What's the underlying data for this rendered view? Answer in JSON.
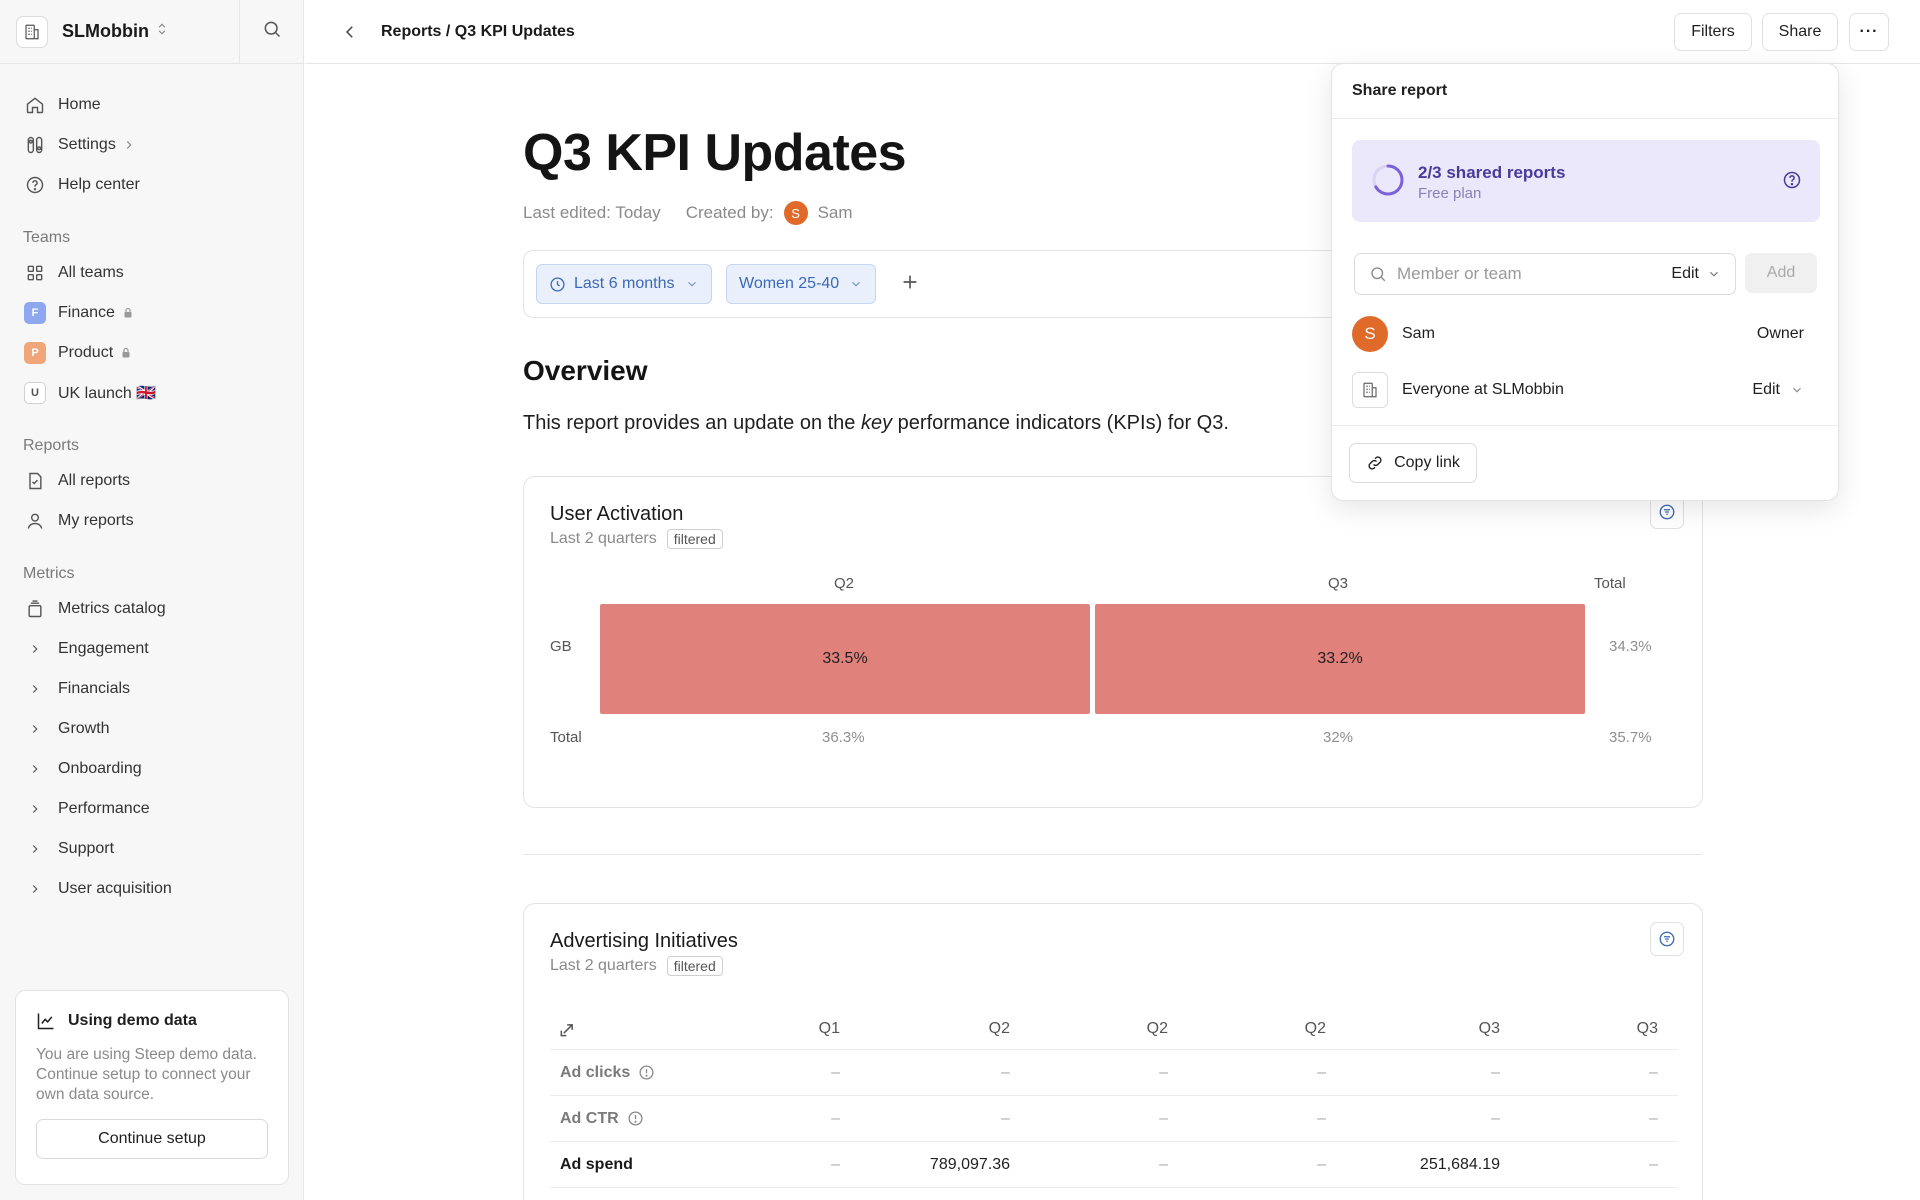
{
  "workspace": {
    "name": "SLMobbin"
  },
  "sidebar": {
    "top_items": [
      {
        "label": "Home"
      },
      {
        "label": "Settings"
      },
      {
        "label": "Help center"
      }
    ],
    "teams_label": "Teams",
    "teams": [
      {
        "label": "All teams"
      },
      {
        "label": "Finance",
        "badge": "F",
        "color": "#8fa7ee"
      },
      {
        "label": "Product",
        "badge": "P",
        "color": "#f0a679"
      },
      {
        "label": "UK launch 🇬🇧",
        "badge": "U"
      }
    ],
    "reports_label": "Reports",
    "reports": [
      {
        "label": "All reports"
      },
      {
        "label": "My reports"
      }
    ],
    "metrics_label": "Metrics",
    "metrics": [
      {
        "label": "Metrics catalog"
      },
      {
        "label": "Engagement"
      },
      {
        "label": "Financials"
      },
      {
        "label": "Growth"
      },
      {
        "label": "Onboarding"
      },
      {
        "label": "Performance"
      },
      {
        "label": "Support"
      },
      {
        "label": "User acquisition"
      }
    ],
    "demo": {
      "title": "Using demo data",
      "text": "You are using Steep demo data. Continue setup to connect your own data source.",
      "button": "Continue setup"
    }
  },
  "header": {
    "breadcrumb": "Reports / Q3 KPI Updates",
    "filters_label": "Filters",
    "share_label": "Share",
    "more_label": "···"
  },
  "report": {
    "title": "Q3 KPI Updates",
    "last_edited": "Last edited: Today",
    "created_by_label": "Created by:",
    "author": "Sam",
    "author_initial": "S",
    "filters": [
      {
        "label": "Last 6 months"
      },
      {
        "label": "Women 25-40"
      }
    ],
    "overview_heading": "Overview",
    "intro_pre": "This report provides an update on the ",
    "intro_em": "key",
    "intro_post": " performance indicators (KPIs) for Q3."
  },
  "user_activation": {
    "title": "User Activation",
    "subtitle": "Last 2 quarters",
    "tag": "filtered",
    "columns": [
      "Q2",
      "Q3",
      "Total"
    ],
    "rows": [
      {
        "label": "GB",
        "values": [
          "33.5%",
          "33.2%"
        ],
        "total": "34.3%"
      }
    ],
    "total_row": {
      "label": "Total",
      "values": [
        "36.3%",
        "32%"
      ],
      "total": "35.7%"
    },
    "cell_color": "#e1817b"
  },
  "advertising": {
    "title": "Advertising Initiatives",
    "subtitle": "Last 2 quarters",
    "tag": "filtered",
    "columns": [
      "Q1",
      "Q2",
      "Q2",
      "Q2",
      "Q3",
      "Q3"
    ],
    "rows": [
      {
        "label": "Ad clicks",
        "info": true,
        "values": [
          "–",
          "–",
          "–",
          "–",
          "–",
          "–"
        ]
      },
      {
        "label": "Ad CTR",
        "info": true,
        "values": [
          "–",
          "–",
          "–",
          "–",
          "–",
          "–"
        ]
      },
      {
        "label": "Ad spend",
        "info": false,
        "values": [
          "–",
          "789,097.36",
          "–",
          "–",
          "251,684.19",
          "–"
        ]
      }
    ]
  },
  "share_popover": {
    "title": "Share report",
    "plan_usage": "2/3 shared reports",
    "plan_name": "Free plan",
    "plan_fraction": 0.667,
    "invite_placeholder": "Member or team",
    "invite_permission": "Edit",
    "add_label": "Add",
    "members": [
      {
        "name": "Sam",
        "initial": "S",
        "role": "Owner"
      },
      {
        "name": "Everyone at SLMobbin",
        "role": "Edit"
      }
    ],
    "copy_link": "Copy link"
  }
}
